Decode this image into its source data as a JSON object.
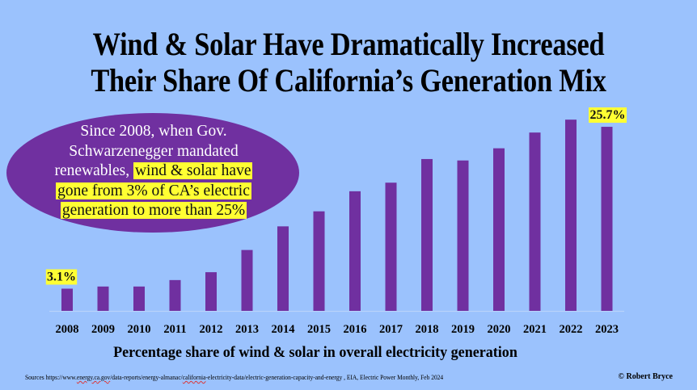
{
  "title_lines": [
    "Wind & Solar Have Dramatically Increased",
    "Their Share Of California’s Generation Mix"
  ],
  "callout": {
    "plain": "Since 2008, when Gov. Schwarzenegger mandated renewables,",
    "highlighted_lines": [
      "wind & solar have",
      "gone from 3% of CA’s electric",
      "generation to more than 25%"
    ],
    "line1": "Since 2008, when Gov.",
    "line2": "Schwarzenegger mandated",
    "line3_plain": "renewables, "
  },
  "colors": {
    "background": "#9bc2fd",
    "bar": "#7030a0",
    "highlight": "#ffff33"
  },
  "chart_data": {
    "type": "bar",
    "title": "Wind & Solar Have Dramatically Increased Their Share Of California’s Generation Mix",
    "xlabel": "Percentage share of wind & solar in overall electricity generation",
    "ylabel": "",
    "categories": [
      "2008",
      "2009",
      "2010",
      "2011",
      "2012",
      "2013",
      "2014",
      "2015",
      "2016",
      "2017",
      "2018",
      "2019",
      "2020",
      "2021",
      "2022",
      "2023"
    ],
    "values": [
      3.1,
      3.4,
      3.4,
      4.3,
      5.4,
      8.5,
      11.8,
      13.9,
      16.7,
      17.9,
      21.2,
      21.0,
      22.7,
      24.9,
      26.7,
      25.7
    ],
    "unit": "%",
    "ylim": [
      0,
      27
    ],
    "grid": false,
    "legend": "none",
    "data_labels": [
      {
        "category": "2008",
        "text": "3.1%"
      },
      {
        "category": "2023",
        "text": "25.7%"
      }
    ]
  },
  "footer": {
    "sources_prefix": "Sources ",
    "sources_url_a": "https://www.",
    "sources_url_b": "energy.ca.gov",
    "sources_url_c": "/data-reports/energy-almanac/",
    "sources_url_d": "california",
    "sources_url_e": "-electricity-data/electric-generation-capacity-and-energy , EIA, Electric Power Monthly, Feb 2024",
    "copyright": "© Robert Bryce"
  }
}
